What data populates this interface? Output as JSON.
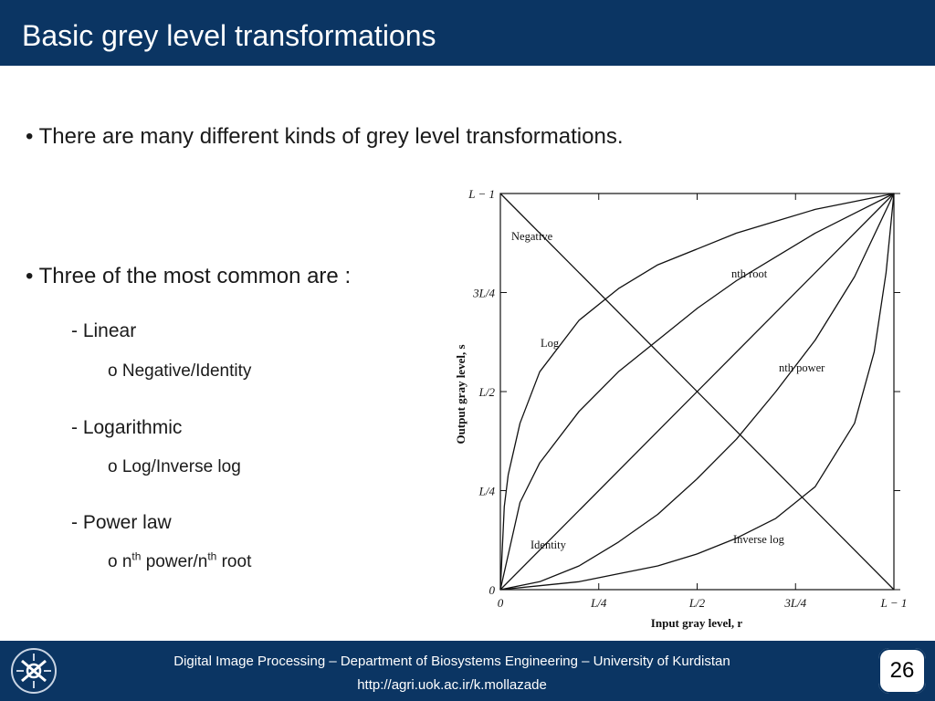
{
  "title": "Basic grey level transformations",
  "bullets": {
    "b1": "• There are many different kinds of grey level transformations.",
    "b2": "• Three of the most common are :",
    "linear": "- Linear",
    "linear_sub": "o Negative/Identity",
    "log": "- Logarithmic",
    "log_sub": "o Log/Inverse log",
    "power": "- Power law",
    "power_sub_prefix": "o n",
    "power_sub_sup1": "th",
    "power_sub_mid": " power/n",
    "power_sub_sup2": "th",
    "power_sub_suffix": " root"
  },
  "chart_data": {
    "type": "line",
    "xlabel": "Input gray level, r",
    "ylabel": "Output gray level, s",
    "x_ticks": [
      "0",
      "L/4",
      "L/2",
      "3L/4",
      "L − 1"
    ],
    "y_ticks": [
      "0",
      "L/4",
      "L/2",
      "3L/4",
      "L − 1"
    ],
    "xlim": [
      0,
      1
    ],
    "ylim": [
      0,
      1
    ],
    "series": [
      {
        "name": "Negative",
        "x": [
          0,
          1
        ],
        "y": [
          1,
          0
        ]
      },
      {
        "name": "Identity",
        "x": [
          0,
          1
        ],
        "y": [
          0,
          1
        ]
      },
      {
        "name": "Log",
        "x": [
          0,
          0.01,
          0.02,
          0.05,
          0.1,
          0.2,
          0.3,
          0.4,
          0.5,
          0.6,
          0.7,
          0.8,
          0.9,
          1
        ],
        "y": [
          0,
          0.21,
          0.29,
          0.42,
          0.55,
          0.68,
          0.76,
          0.82,
          0.86,
          0.9,
          0.93,
          0.96,
          0.98,
          1
        ]
      },
      {
        "name": "nth root",
        "x": [
          0,
          0.05,
          0.1,
          0.2,
          0.3,
          0.4,
          0.5,
          0.6,
          0.7,
          0.8,
          0.9,
          1
        ],
        "y": [
          0,
          0.22,
          0.32,
          0.45,
          0.55,
          0.63,
          0.71,
          0.78,
          0.84,
          0.9,
          0.95,
          1
        ]
      },
      {
        "name": "nth power",
        "x": [
          0,
          0.1,
          0.2,
          0.3,
          0.4,
          0.5,
          0.6,
          0.7,
          0.8,
          0.9,
          1
        ],
        "y": [
          0,
          0.02,
          0.06,
          0.12,
          0.19,
          0.28,
          0.38,
          0.5,
          0.63,
          0.79,
          1
        ]
      },
      {
        "name": "Inverse log",
        "x": [
          0,
          0.1,
          0.2,
          0.3,
          0.4,
          0.5,
          0.6,
          0.7,
          0.8,
          0.9,
          0.95,
          0.98,
          1
        ],
        "y": [
          0,
          0.01,
          0.02,
          0.04,
          0.06,
          0.09,
          0.13,
          0.18,
          0.26,
          0.42,
          0.6,
          0.8,
          1
        ]
      }
    ],
    "annotations": [
      "Negative",
      "nth root",
      "Log",
      "nth power",
      "Identity",
      "Inverse log"
    ]
  },
  "footer": {
    "line1": "Digital Image Processing – Department of Biosystems Engineering – University of Kurdistan",
    "line2": "http://agri.uok.ac.ir/k.mollazade",
    "logo": "university-logo-icon"
  },
  "page_number": "26",
  "colors": {
    "header": "#0b3563",
    "text": "#1a1a1a",
    "footer": "#0b3563"
  }
}
